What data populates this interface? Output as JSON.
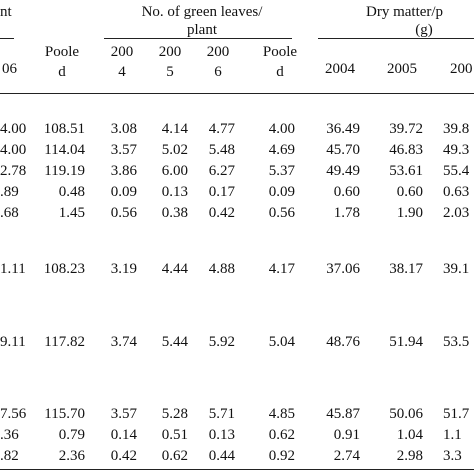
{
  "header": {
    "group1_partial": "nt",
    "group2_line1": "No. of green leaves/",
    "group2_line2": "plant",
    "group3_line1": "Dry matter/p",
    "group3_line2": "(g)",
    "col_06_partial": "06",
    "pooled1_line1": "Poole",
    "pooled1_line2": "d",
    "y2004a_line1": "200",
    "y2004a_line2": "4",
    "y2005a_line1": "200",
    "y2005a_line2": "5",
    "y2006a_line1": "200",
    "y2006a_line2": "6",
    "pooled2_line1": "Poole",
    "pooled2_line2": "d",
    "y2004b": "2004",
    "y2005b": "2005",
    "y2006b_partial": "200"
  },
  "rows": [
    [
      "4.00",
      "108.51",
      "3.08",
      "4.14",
      "4.77",
      "4.00",
      "36.49",
      "39.72",
      "39.8"
    ],
    [
      "4.00",
      "114.04",
      "3.57",
      "5.02",
      "5.48",
      "4.69",
      "45.70",
      "46.83",
      "49.3"
    ],
    [
      "2.78",
      "119.19",
      "3.86",
      "6.00",
      "6.27",
      "5.37",
      "49.49",
      "53.61",
      "55.4"
    ],
    [
      ".89",
      "0.48",
      "0.09",
      "0.13",
      "0.17",
      "0.09",
      "0.60",
      "0.60",
      "0.63"
    ],
    [
      ".68",
      "1.45",
      "0.56",
      "0.38",
      "0.42",
      "0.56",
      "1.78",
      "1.90",
      "2.03"
    ],
    [
      "1.11",
      "108.23",
      "3.19",
      "4.44",
      "4.88",
      "4.17",
      "37.06",
      "38.17",
      "39.1"
    ],
    [
      "9.11",
      "117.82",
      "3.74",
      "5.44",
      "5.92",
      "5.04",
      "48.76",
      "51.94",
      "53.5"
    ],
    [
      "7.56",
      "115.70",
      "3.57",
      "5.28",
      "5.71",
      "4.85",
      "45.87",
      "50.06",
      "51.7"
    ],
    [
      ".36",
      "0.79",
      "0.14",
      "0.51",
      "0.13",
      "0.62",
      "0.91",
      "1.04",
      "1.1"
    ],
    [
      ".82",
      "2.36",
      "0.42",
      "0.62",
      "0.44",
      "0.92",
      "2.74",
      "2.98",
      "3.3"
    ]
  ]
}
